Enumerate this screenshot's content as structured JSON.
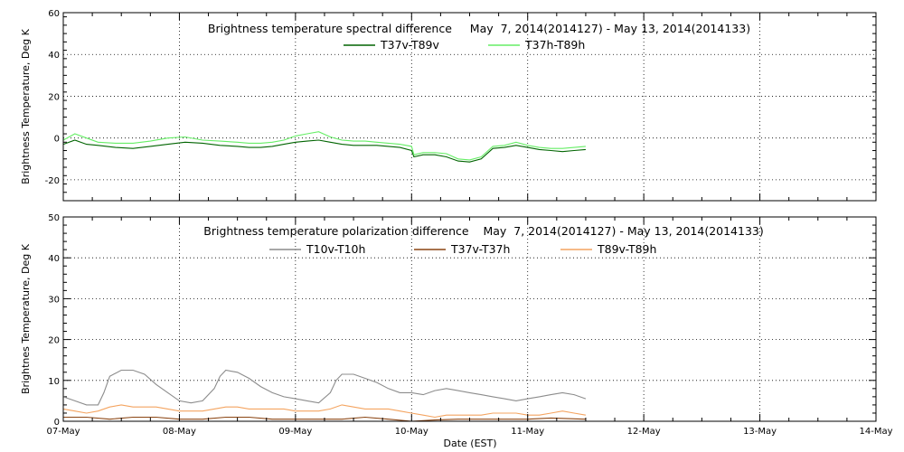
{
  "chart_data": [
    {
      "type": "line",
      "title": "Brightness temperature spectral difference     May  7, 2014(2014127) - May 13, 2014(2014133)",
      "xlabel": "",
      "ylabel": "Brightness Temperature, Deg K",
      "xlim": [
        "07-May",
        "14-May"
      ],
      "ylim": [
        -30,
        60
      ],
      "yticks": [
        -20,
        0,
        20,
        40,
        60
      ],
      "grid": true,
      "legend_position": "top-center",
      "series": [
        {
          "name": "T37v-T89v",
          "color": "#006400",
          "x": [
            0.0,
            0.1,
            0.2,
            0.3,
            0.45,
            0.6,
            0.75,
            0.9,
            1.05,
            1.2,
            1.35,
            1.5,
            1.6,
            1.7,
            1.8,
            1.9,
            2.0,
            2.1,
            2.2,
            2.3,
            2.4,
            2.5,
            2.6,
            2.7,
            2.8,
            2.9,
            3.0,
            3.02,
            3.1,
            3.2,
            3.3,
            3.4,
            3.5,
            3.6,
            3.7,
            3.8,
            3.9,
            4.0,
            4.1,
            4.2,
            4.3,
            4.4,
            4.5
          ],
          "values": [
            -3,
            -1,
            -3,
            -3.5,
            -4.5,
            -5,
            -4,
            -3,
            -2,
            -2.5,
            -3.5,
            -4,
            -4.5,
            -4.5,
            -4,
            -3,
            -2,
            -1.5,
            -1,
            -2,
            -3,
            -3.5,
            -3.5,
            -3.5,
            -4,
            -4.5,
            -6,
            -9,
            -8,
            -8,
            -9,
            -11,
            -11.5,
            -10,
            -5,
            -4.5,
            -3.5,
            -4.5,
            -5.5,
            -6,
            -6.5,
            -6,
            -5.5
          ]
        },
        {
          "name": "T37h-T89h",
          "color": "#66ee66",
          "x": [
            0.0,
            0.1,
            0.2,
            0.3,
            0.45,
            0.6,
            0.75,
            0.9,
            1.05,
            1.2,
            1.35,
            1.5,
            1.6,
            1.7,
            1.8,
            1.9,
            2.0,
            2.1,
            2.2,
            2.3,
            2.4,
            2.5,
            2.6,
            2.7,
            2.8,
            2.9,
            3.0,
            3.02,
            3.1,
            3.2,
            3.3,
            3.4,
            3.5,
            3.6,
            3.7,
            3.8,
            3.9,
            4.0,
            4.1,
            4.2,
            4.3,
            4.4,
            4.5
          ],
          "values": [
            -1,
            2,
            0,
            -2,
            -2.5,
            -2.5,
            -1.5,
            0,
            0.5,
            -1,
            -1.5,
            -2,
            -2.5,
            -2.5,
            -2,
            -1,
            1,
            2,
            3,
            0.5,
            -1,
            -1.5,
            -1.5,
            -2,
            -2.5,
            -3,
            -4,
            -8,
            -7,
            -7,
            -7.5,
            -10,
            -10.5,
            -9,
            -4,
            -3.5,
            -2,
            -3.5,
            -4.5,
            -5,
            -5,
            -4.5,
            -4
          ]
        }
      ]
    },
    {
      "type": "line",
      "title": "Brightness temperature polarization difference    May  7, 2014(2014127) - May 13, 2014(2014133)",
      "xlabel": "Date (EST)",
      "ylabel": "Brightnes Temperature, Deg K",
      "categories": [
        "07-May",
        "08-May",
        "09-May",
        "10-May",
        "11-May",
        "12-May",
        "13-May",
        "14-May"
      ],
      "xlim": [
        "07-May",
        "14-May"
      ],
      "ylim": [
        0,
        50
      ],
      "yticks": [
        0,
        10,
        20,
        30,
        40,
        50
      ],
      "grid": true,
      "legend_position": "top-center",
      "series": [
        {
          "name": "T10v-T10h",
          "color": "#8c8c8c",
          "x": [
            0.0,
            0.1,
            0.2,
            0.3,
            0.35,
            0.4,
            0.5,
            0.6,
            0.7,
            0.8,
            0.9,
            1.0,
            1.1,
            1.2,
            1.3,
            1.35,
            1.4,
            1.5,
            1.6,
            1.7,
            1.8,
            1.9,
            2.0,
            2.1,
            2.2,
            2.3,
            2.35,
            2.4,
            2.5,
            2.6,
            2.7,
            2.8,
            2.9,
            3.0,
            3.1,
            3.2,
            3.3,
            3.4,
            3.5,
            3.6,
            3.7,
            3.8,
            3.9,
            4.0,
            4.1,
            4.2,
            4.3,
            4.4,
            4.5
          ],
          "values": [
            6,
            5,
            4,
            4,
            7,
            11,
            12.5,
            12.5,
            11.5,
            9,
            7,
            5,
            4.5,
            5,
            8,
            11,
            12.5,
            12,
            10.5,
            8.5,
            7,
            6,
            5.5,
            5,
            4.5,
            7,
            10,
            11.5,
            11.5,
            10.5,
            9.5,
            8,
            7,
            7,
            6.5,
            7.5,
            8,
            7.5,
            7,
            6.5,
            6,
            5.5,
            5,
            5.5,
            6,
            6.5,
            7,
            6.5,
            5.5
          ]
        },
        {
          "name": "T37v-T37h",
          "color": "#8b4513",
          "x": [
            0.0,
            0.2,
            0.4,
            0.6,
            0.8,
            1.0,
            1.2,
            1.4,
            1.6,
            1.8,
            2.0,
            2.2,
            2.4,
            2.6,
            2.8,
            3.0,
            3.2,
            3.4,
            3.6,
            3.8,
            4.0,
            4.2,
            4.5
          ],
          "values": [
            1,
            1,
            0.5,
            1,
            1,
            0.5,
            0.5,
            1,
            1,
            0.5,
            0.5,
            0.5,
            0.5,
            1,
            0.5,
            0,
            0.3,
            0.5,
            0.5,
            0.5,
            0.5,
            0.8,
            0.5
          ]
        },
        {
          "name": "T89v-T89h",
          "color": "#f4a460",
          "x": [
            0.0,
            0.1,
            0.2,
            0.3,
            0.4,
            0.5,
            0.6,
            0.7,
            0.8,
            0.9,
            1.0,
            1.1,
            1.2,
            1.3,
            1.4,
            1.5,
            1.6,
            1.7,
            1.8,
            1.9,
            2.0,
            2.1,
            2.2,
            2.3,
            2.4,
            2.5,
            2.6,
            2.7,
            2.8,
            2.9,
            3.0,
            3.1,
            3.2,
            3.3,
            3.4,
            3.5,
            3.6,
            3.7,
            3.8,
            3.9,
            4.0,
            4.1,
            4.2,
            4.3,
            4.4,
            4.5
          ],
          "values": [
            3,
            2.5,
            2,
            2.5,
            3.5,
            4,
            3.5,
            3.5,
            3.5,
            3,
            2.5,
            2.5,
            2.5,
            3,
            3.5,
            3.5,
            3,
            3,
            3,
            3,
            2.5,
            2.5,
            2.5,
            3,
            4,
            3.5,
            3,
            3,
            3,
            2.5,
            2,
            1.5,
            1,
            1.5,
            1.5,
            1.5,
            1.5,
            2,
            2,
            2,
            1.5,
            1.5,
            2,
            2.5,
            2,
            1.5
          ]
        }
      ]
    }
  ]
}
